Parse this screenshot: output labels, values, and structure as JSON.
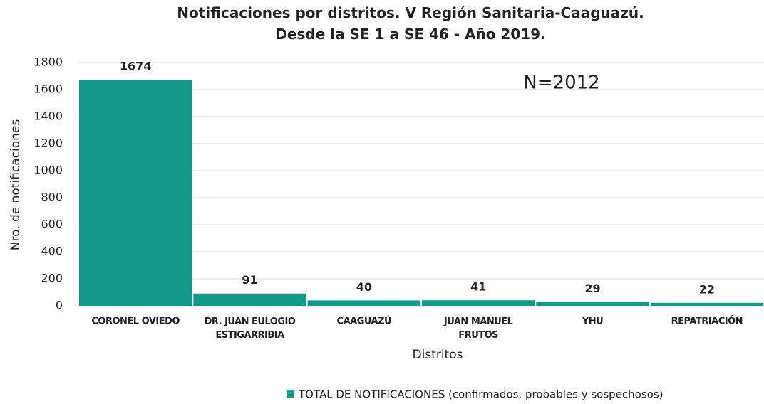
{
  "chart_data": {
    "type": "bar",
    "title": "Notificaciones por distritos. V Región Sanitaria-Caaguazú.\nDesde la SE 1 a SE 46 - Año 2019.",
    "x_label": "Distritos",
    "y_label": "Nro. de notificaciones",
    "annotation": "N=2012",
    "categories": [
      "CORONEL OVIEDO",
      "DR. JUAN EULOGIO\nESTIGARRIBIA",
      "CAAGUAZÚ",
      "JUAN MANUEL\nFRUTOS",
      "YHU",
      "REPATRIACIÓN"
    ],
    "series": [
      {
        "name": "TOTAL DE NOTIFICACIONES (confirmados, probables y sospechosos)",
        "color": "#12998a",
        "values": [
          1674,
          91,
          40,
          41,
          29,
          22
        ]
      }
    ],
    "ylim": [
      0,
      1800
    ],
    "yticks": [
      0,
      200,
      400,
      600,
      800,
      1000,
      1200,
      1400,
      1600,
      1800
    ],
    "grid": true,
    "legend": "bottom"
  }
}
